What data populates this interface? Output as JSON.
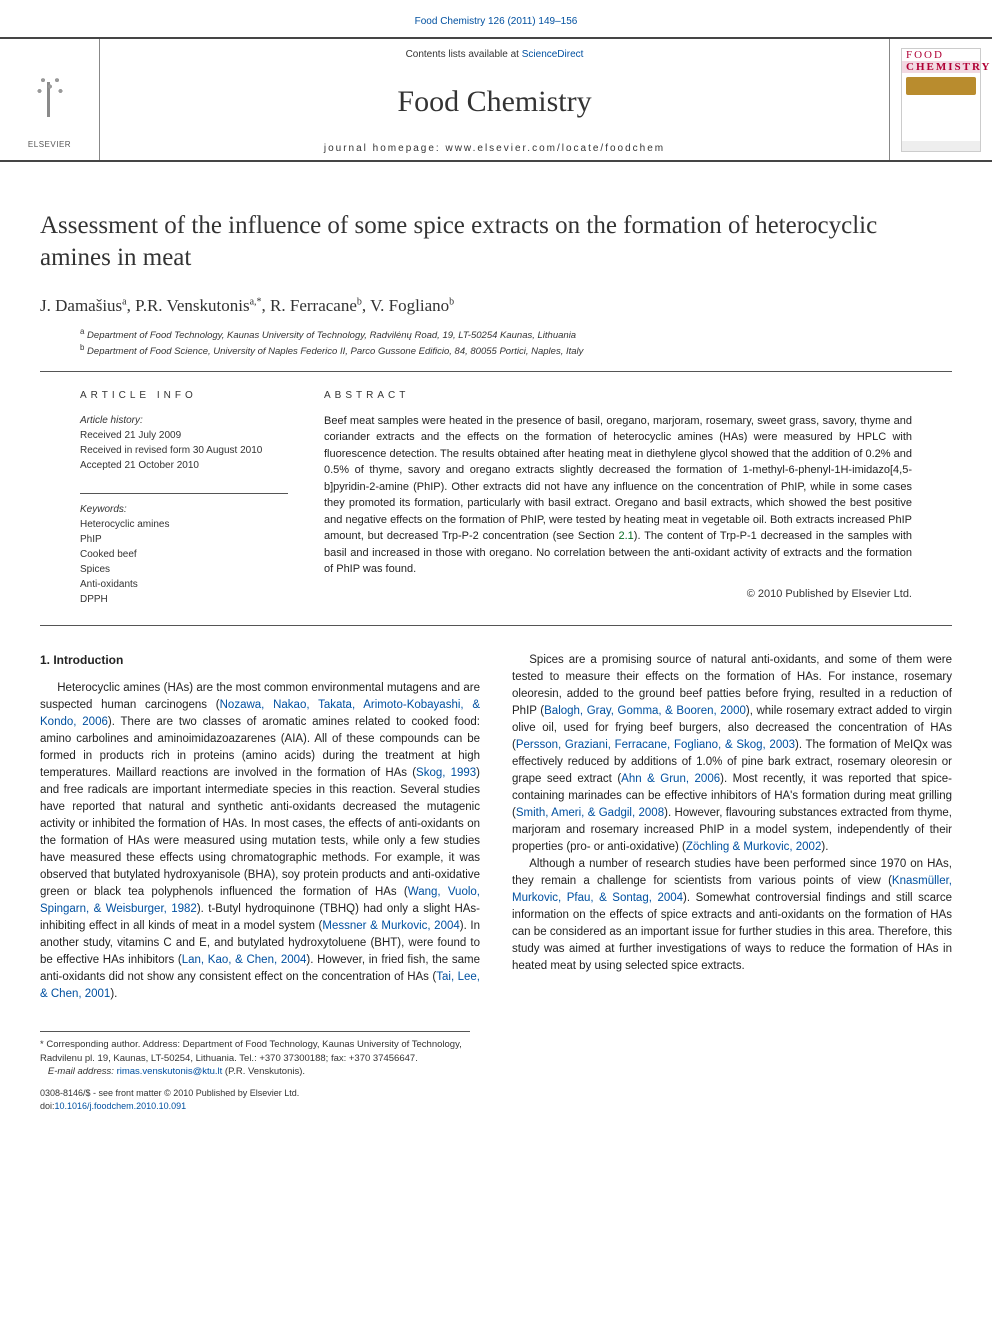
{
  "meta": {
    "journal_link_text": "Food Chemistry 126 (2011) 149–156",
    "contents_line_pre": "Contents lists available at ",
    "contents_line_link": "ScienceDirect",
    "journal_name": "Food Chemistry",
    "homepage_line": "journal homepage: www.elsevier.com/locate/foodchem",
    "publisher_logo_alt": "ELSEVIER",
    "cover_word1": "FOOD",
    "cover_word2": "CHEMISTRY"
  },
  "colors": {
    "link": "#0050a0",
    "sec_link": "#066a1f",
    "rule": "#454545",
    "cover_accent": "#b00035"
  },
  "title": "Assessment of the influence of some spice extracts on the formation of heterocyclic amines in meat",
  "authors_html_parts": {
    "a1": "J. Damašius",
    "a1_aff": "a",
    "a2": "P.R. Venskutonis",
    "a2_aff": "a,",
    "a2_star": "*",
    "a3": "R. Ferracane",
    "a3_aff": "b",
    "a4": "V. Fogliano",
    "a4_aff": "b"
  },
  "affiliations": {
    "a": "Department of Food Technology, Kaunas University of Technology, Radvilėnų Road, 19, LT-50254 Kaunas, Lithuania",
    "b": "Department of Food Science, University of Naples Federico II, Parco Gussone Edificio, 84, 80055 Portici, Naples, Italy"
  },
  "info": {
    "section_label": "ARTICLE INFO",
    "history_label": "Article history:",
    "received": "Received 21 July 2009",
    "revised": "Received in revised form 30 August 2010",
    "accepted": "Accepted 21 October 2010",
    "kw_label": "Keywords:",
    "keywords": [
      "Heterocyclic amines",
      "PhIP",
      "Cooked beef",
      "Spices",
      "Anti-oxidants",
      "DPPH"
    ]
  },
  "abstract": {
    "label": "ABSTRACT",
    "text": "Beef meat samples were heated in the presence of basil, oregano, marjoram, rosemary, sweet grass, savory, thyme and coriander extracts and the effects on the formation of heterocyclic amines (HAs) were measured by HPLC with fluorescence detection. The results obtained after heating meat in diethylene glycol showed that the addition of 0.2% and 0.5% of thyme, savory and oregano extracts slightly decreased the formation of 1-methyl-6-phenyl-1H-imidazo[4,5-b]pyridin-2-amine (PhIP). Other extracts did not have any influence on the concentration of PhIP, while in some cases they promoted its formation, particularly with basil extract. Oregano and basil extracts, which showed the best positive and negative effects on the formation of PhIP, were tested by heating meat in vegetable oil. Both extracts increased PhIP amount, but decreased Trp-P-2 concentration (see Section ",
    "sec_ref": "2.1",
    "text2": "). The content of Trp-P-1 decreased in the samples with basil and increased in those with oregano. No correlation between the anti-oxidant activity of extracts and the formation of PhIP was found.",
    "copyright": "© 2010 Published by Elsevier Ltd."
  },
  "intro": {
    "heading": "1. Introduction",
    "p1a": "Heterocyclic amines (HAs) are the most common environmental mutagens and are suspected human carcinogens (",
    "p1r1": "Nozawa, Nakao, Takata, Arimoto-Kobayashi, & Kondo, 2006",
    "p1b": "). There are two classes of aromatic amines related to cooked food: amino carbolines and aminoimidazoazarenes (AIA). All of these compounds can be formed in products rich in proteins (amino acids) during the treatment at high temperatures. Maillard reactions are involved in the formation of HAs (",
    "p1r2": "Skog, 1993",
    "p1c": ") and free radicals are important intermediate species in this reaction. Several studies have reported that natural and synthetic anti-oxidants decreased the mutagenic activity or inhibited the formation of HAs. In most cases, the effects of anti-oxidants on the formation of HAs were measured using mutation tests, while only a few studies have measured these effects using chromatographic methods. For example, it was observed that butylated hydroxyanisole (BHA), soy protein products and anti-oxidative green or black tea polyphenols influenced the formation of HAs (",
    "p1r3": "Wang, Vuolo, Spingarn, & Weisburger, 1982",
    "p1d": "). t-Butyl hydroquinone (TBHQ) had only a slight HAs-inhibiting effect in all kinds of meat in a model system (",
    "p1r4": "Messner & Murkovic, 2004",
    "p1e": "). In another study, vitamins C and E, and butylated hydroxytoluene (BHT), were found to be effective HAs inhibitors (",
    "p1r5": "Lan, Kao, & Chen, 2004",
    "p1f": "). However, in fried fish, the same anti-oxidants did not show any consistent effect on the concentration of HAs (",
    "p1r6": "Tai, Lee, & Chen, 2001",
    "p1g": ").",
    "p2a": "Spices are a promising source of natural anti-oxidants, and some of them were tested to measure their effects on the formation of HAs. For instance, rosemary oleoresin, added to the ground beef patties before frying, resulted in a reduction of PhIP (",
    "p2r1": "Balogh, Gray, Gomma, & Booren, 2000",
    "p2b": "), while rosemary extract added to virgin olive oil, used for frying beef burgers, also decreased the concentration of HAs (",
    "p2r2": "Persson, Graziani, Ferracane, Fogliano, & Skog, 2003",
    "p2c": "). The formation of MeIQx was effectively reduced by additions of 1.0% of pine bark extract, rosemary oleoresin or grape seed extract (",
    "p2r3": "Ahn & Grun, 2006",
    "p2d": "). Most recently, it was reported that spice-containing marinades can be effective inhibitors of HA's formation during meat grilling (",
    "p2r4": "Smith, Ameri, & Gadgil, 2008",
    "p2e": "). However, flavouring substances extracted from thyme, marjoram and rosemary increased PhIP in a model system, independently of their properties (pro- or anti-oxidative) (",
    "p2r5": "Zöchling & Murkovic, 2002",
    "p2f": ").",
    "p3a": "Although a number of research studies have been performed since 1970 on HAs, they remain a challenge for scientists from various points of view (",
    "p3r1": "Knasmüller, Murkovic, Pfau, & Sontag, 2004",
    "p3b": "). Somewhat controversial findings and still scarce information on the effects of spice extracts and anti-oxidants on the formation of HAs can be considered as an important issue for further studies in this area. Therefore, this study was aimed at further investigations of ways to reduce the formation of HAs in heated meat by using selected spice extracts."
  },
  "corr": {
    "star": "*",
    "text": " Corresponding author. Address: Department of Food Technology, Kaunas University of Technology, Radvilenu pl. 19, Kaunas, LT-50254, Lithuania. Tel.: +370 37300188; fax: +370 37456647.",
    "email_label": "E-mail address: ",
    "email": "rimas.venskutonis@ktu.lt",
    "email_tail": " (P.R. Venskutonis)."
  },
  "footer": {
    "issn_line": "0308-8146/$ - see front matter © 2010 Published by Elsevier Ltd.",
    "doi_pre": "doi:",
    "doi": "10.1016/j.foodchem.2010.10.091"
  }
}
